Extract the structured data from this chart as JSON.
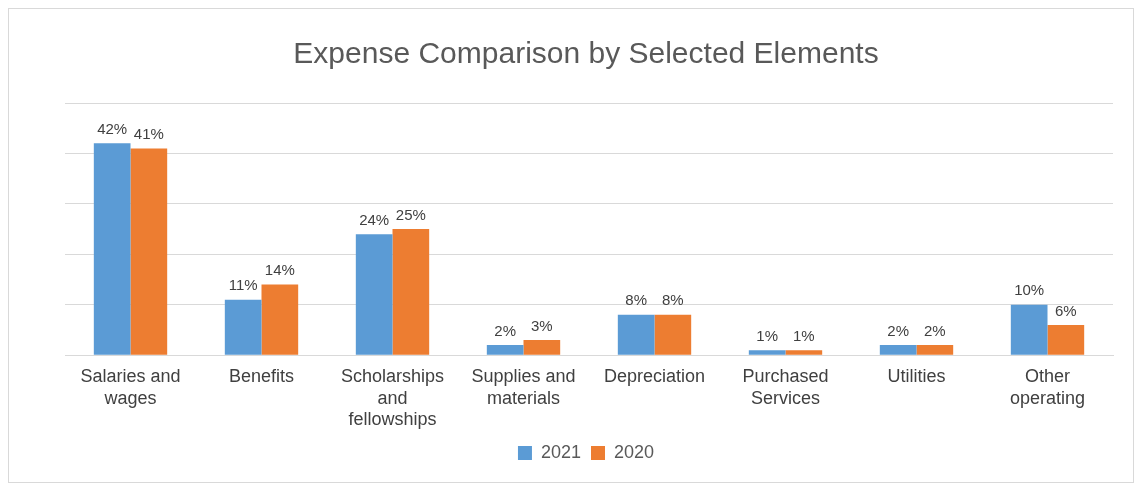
{
  "chart_data": {
    "type": "bar",
    "title": "Expense Comparison by Selected Elements",
    "categories": [
      "Salaries and wages",
      "Benefits",
      "Scholarships and fellowships",
      "Supplies and materials",
      "Depreciation",
      "Purchased Services",
      "Utilities",
      "Other operating"
    ],
    "series": [
      {
        "name": "2021",
        "color": "#5b9bd5",
        "values": [
          42,
          11,
          24,
          2,
          8,
          1,
          2,
          10
        ],
        "value_labels": [
          "42%",
          "11%",
          "24%",
          "2%",
          "8%",
          "1%",
          "2%",
          "10%"
        ]
      },
      {
        "name": "2020",
        "color": "#ed7d31",
        "values": [
          41,
          14,
          25,
          3,
          8,
          1,
          2,
          6
        ],
        "value_labels": [
          "41%",
          "14%",
          "25%",
          "3%",
          "8%",
          "1%",
          "2%",
          "6%"
        ]
      }
    ],
    "ylim": [
      0,
      50
    ],
    "yticks": [
      {
        "value": 0,
        "label": null
      },
      {
        "value": 10,
        "label": null
      },
      {
        "value": 20,
        "label": null
      },
      {
        "value": 30,
        "label": null
      },
      {
        "value": 40,
        "label": null
      },
      {
        "value": 50,
        "label": null
      }
    ],
    "tick_labels": "x",
    "grid": "y",
    "legend": "bottom"
  }
}
